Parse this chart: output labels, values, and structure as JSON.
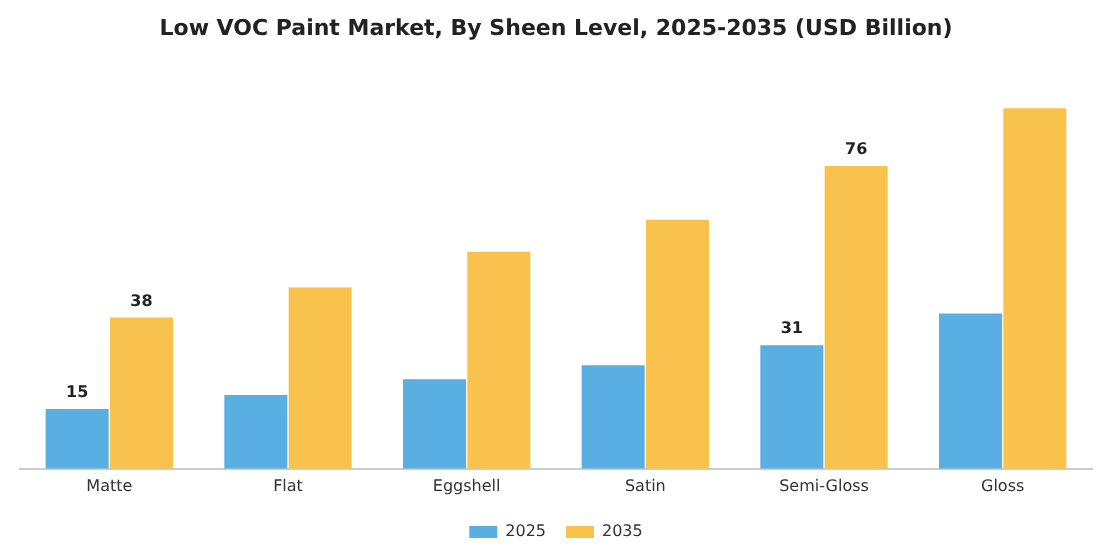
{
  "chart_data": {
    "type": "bar",
    "title": "Low VOC Paint Market, By Sheen Level, 2025-2035 (USD Billion)",
    "categories": [
      "Matte",
      "Flat",
      "Eggshell",
      "Satin",
      "Semi-Gloss",
      "Gloss"
    ],
    "series": [
      {
        "name": "2025",
        "color": "#5aafe2",
        "values": [
          15,
          18.5,
          22.5,
          26,
          31,
          39
        ],
        "value_labels": [
          "15",
          null,
          null,
          null,
          "31",
          null
        ]
      },
      {
        "name": "2035",
        "color": "#f8c24c",
        "values": [
          38,
          45.5,
          54.5,
          62.5,
          76,
          90.5
        ],
        "value_labels": [
          "38",
          null,
          null,
          null,
          "76",
          null
        ]
      }
    ],
    "legend": "bottom",
    "grid": false,
    "tick_labels": "x"
  }
}
